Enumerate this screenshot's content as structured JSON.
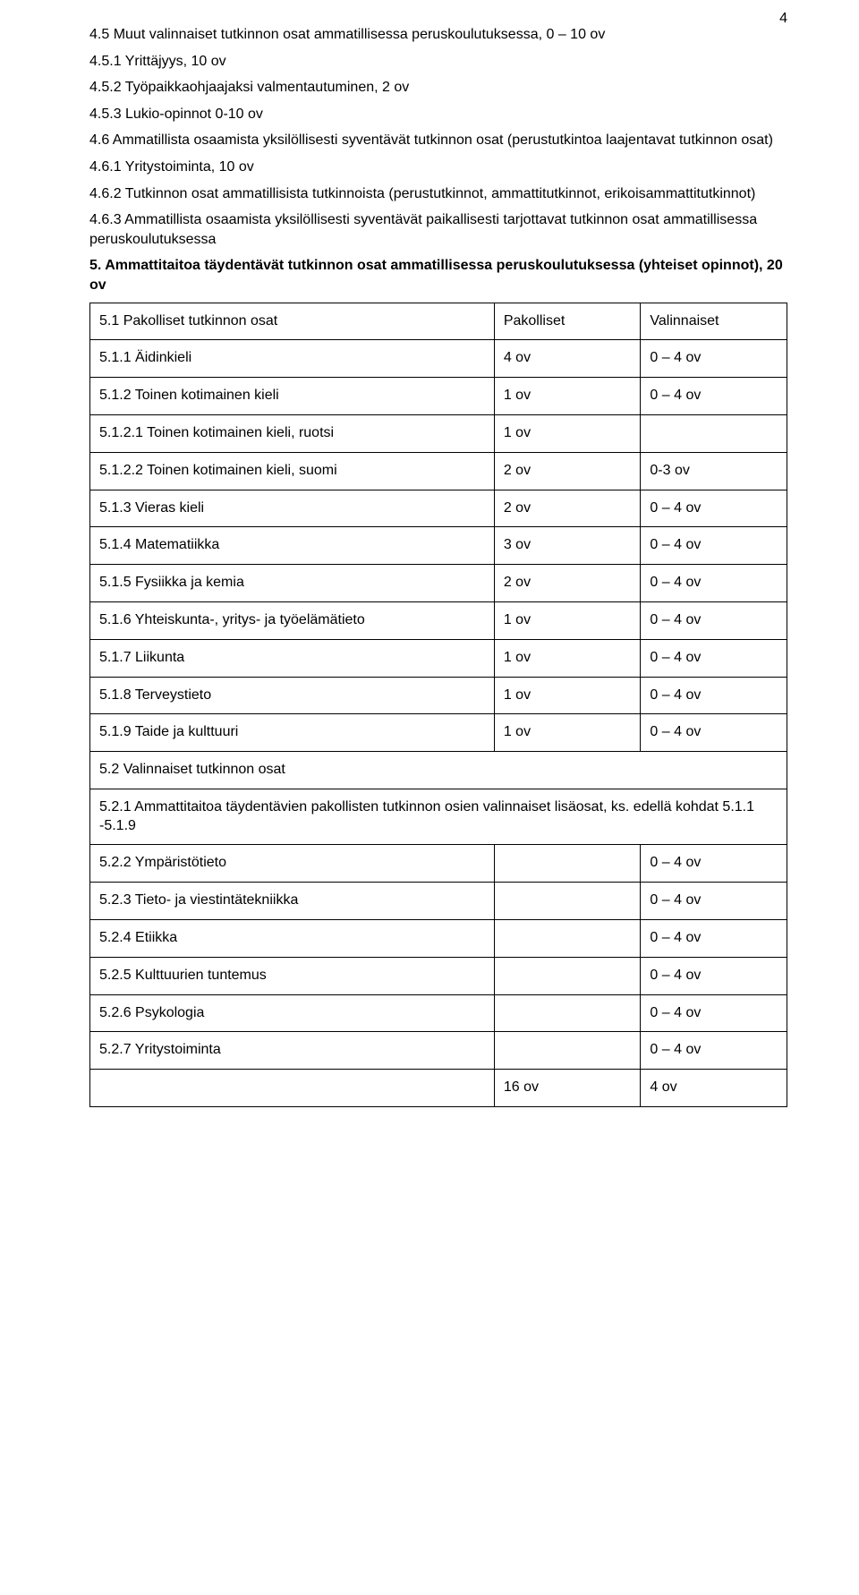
{
  "pagenum": "4",
  "pre": [
    "4.5 Muut valinnaiset tutkinnon osat ammatillisessa peruskoulutuksessa, 0 – 10 ov",
    "4.5.1 Yrittäjyys, 10 ov",
    "4.5.2 Työpaikkaohjaajaksi valmentautuminen, 2 ov",
    "4.5.3 Lukio-opinnot 0-10 ov",
    "4.6 Ammatillista osaamista yksilöllisesti syventävät tutkinnon osat (perustutkintoa laajentavat tutkinnon osat)",
    "4.6.1 Yritystoiminta, 10 ov",
    "4.6.2 Tutkinnon osat ammatillisista tutkinnoista (perustutkinnot, ammattitutkinnot, erikoisammattitutkinnot)",
    "4.6.3 Ammatillista osaamista yksilöllisesti syventävät paikallisesti tarjottavat tutkinnon osat ammatillisessa peruskoulutuksessa"
  ],
  "bold_heading": "5. Ammattitaitoa täydentävät tutkinnon osat ammatillisessa peruskoulutuksessa (yhteiset opinnot), 20 ov",
  "rows": [
    {
      "c1": "5.1 Pakolliset tutkinnon osat",
      "c2": "Pakolliset",
      "c3": "Valinnaiset"
    },
    {
      "c1": "5.1.1 Äidinkieli",
      "c2": "4 ov",
      "c3": "0 – 4 ov"
    },
    {
      "c1": "5.1.2 Toinen kotimainen kieli",
      "c2": "1 ov",
      "c3": "0 – 4 ov"
    },
    {
      "c1": "5.1.2.1 Toinen kotimainen kieli, ruotsi",
      "c2": "1 ov",
      "c3": ""
    },
    {
      "c1": "5.1.2.2 Toinen kotimainen kieli, suomi",
      "c2": "2 ov",
      "c3": "0-3 ov"
    },
    {
      "c1": "5.1.3 Vieras kieli",
      "c2": "2 ov",
      "c3": "0 – 4 ov"
    },
    {
      "c1": "5.1.4 Matematiikka",
      "c2": "3 ov",
      "c3": "0 – 4 ov"
    },
    {
      "c1": "5.1.5 Fysiikka ja kemia",
      "c2": "2 ov",
      "c3": "0 – 4 ov"
    },
    {
      "c1": "5.1.6 Yhteiskunta-, yritys- ja työelämätieto",
      "c2": "1 ov",
      "c3": "0 – 4 ov"
    },
    {
      "c1": "5.1.7 Liikunta",
      "c2": "1 ov",
      "c3": "0 – 4 ov"
    },
    {
      "c1": "5.1.8 Terveystieto",
      "c2": "1 ov",
      "c3": "0 – 4 ov"
    },
    {
      "c1": "5.1.9 Taide ja kulttuuri",
      "c2": "1 ov",
      "c3": "0 – 4 ov"
    },
    {
      "c1": "5.2 Valinnaiset tutkinnon osat",
      "c2": "",
      "c3": "",
      "span": true
    },
    {
      "c1": "5.2.1 Ammattitaitoa täydentävien pakollisten tutkinnon osien valinnaiset lisäosat, ks. edellä kohdat 5.1.1 -5.1.9",
      "span": true
    },
    {
      "c1": "5.2.2 Ympäristötieto",
      "c2": "",
      "c3": "0 – 4 ov"
    },
    {
      "c1": "5.2.3 Tieto- ja viestintätekniikka",
      "c2": "",
      "c3": "0 – 4 ov"
    },
    {
      "c1": "5.2.4 Etiikka",
      "c2": "",
      "c3": "0 – 4 ov"
    },
    {
      "c1": "5.2.5 Kulttuurien tuntemus",
      "c2": "",
      "c3": "0 – 4 ov"
    },
    {
      "c1": "5.2.6 Psykologia",
      "c2": "",
      "c3": "0 – 4 ov"
    },
    {
      "c1": "5.2.7 Yritystoiminta",
      "c2": "",
      "c3": "0 – 4 ov"
    },
    {
      "c1": "",
      "c2": "16 ov",
      "c3": "4 ov"
    }
  ]
}
